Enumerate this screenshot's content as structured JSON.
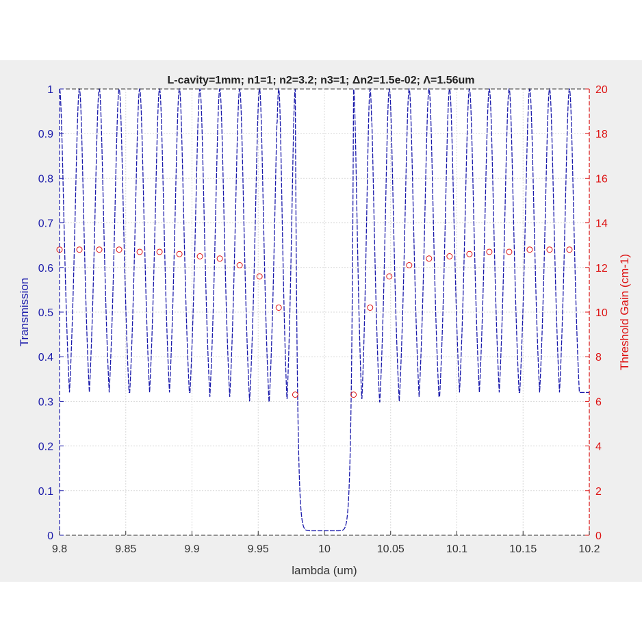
{
  "chart_data": {
    "type": "line",
    "title": "L-cavity=1mm; n1=1; n2=3.2; n3=1; Δn2=1.5e-02; Λ=1.56um",
    "xlabel": "lambda (um)",
    "ylabel": "Transmission",
    "y2label": "Threshold Gain (cm-1)",
    "xlim": [
      9.8,
      10.2
    ],
    "ylim": [
      0,
      1
    ],
    "y2lim": [
      0,
      20
    ],
    "xticks": [
      "9.8",
      "9.85",
      "9.9",
      "9.95",
      "10",
      "10.05",
      "10.1",
      "10.15",
      "10.2"
    ],
    "yticks": [
      "0",
      "0.1",
      "0.2",
      "0.3",
      "0.4",
      "0.5",
      "0.6",
      "0.7",
      "0.8",
      "0.9",
      "1"
    ],
    "y2ticks": [
      "0",
      "2",
      "4",
      "6",
      "8",
      "10",
      "12",
      "14",
      "16",
      "18",
      "20"
    ],
    "grid": true,
    "colors": {
      "left_axis": "#1a1aaa",
      "right_axis": "#dd1111",
      "transmission": "#1a1aaa",
      "threshold": "#dd1111"
    },
    "series": [
      {
        "role": "transmission",
        "style": "solid/dashed line",
        "peaks_x": [
          9.8,
          9.815,
          9.83,
          9.845,
          9.8605,
          9.8755,
          9.8905,
          9.906,
          9.921,
          9.936,
          9.951,
          9.9655,
          9.978,
          10.022,
          10.0345,
          10.049,
          10.064,
          10.079,
          10.0945,
          10.1095,
          10.1245,
          10.1395,
          10.155,
          10.17,
          10.185
        ],
        "peak_y": 1.0,
        "troughs_x": [
          9.8075,
          9.8225,
          9.8375,
          9.853,
          9.868,
          9.883,
          9.8985,
          9.9135,
          9.9285,
          9.9435,
          9.958,
          9.9705,
          10.0295,
          10.042,
          10.0565,
          10.0715,
          10.0865,
          10.102,
          10.117,
          10.132,
          10.147,
          10.1625,
          10.1775,
          10.1925
        ],
        "troughs_y": [
          0.32,
          0.32,
          0.32,
          0.32,
          0.32,
          0.32,
          0.32,
          0.31,
          0.31,
          0.3,
          0.28,
          0.23,
          0.23,
          0.28,
          0.3,
          0.31,
          0.31,
          0.32,
          0.32,
          0.32,
          0.32,
          0.32,
          0.32,
          0.32
        ],
        "stopband": {
          "x": [
            9.978,
            10.022
          ],
          "min_y": 0.01
        }
      },
      {
        "role": "threshold",
        "style": "open circles",
        "axis": "right",
        "x": [
          9.8,
          9.815,
          9.83,
          9.845,
          9.8605,
          9.8755,
          9.8905,
          9.906,
          9.921,
          9.936,
          9.951,
          9.9655,
          9.978,
          10.022,
          10.0345,
          10.049,
          10.064,
          10.079,
          10.0945,
          10.1095,
          10.1245,
          10.1395,
          10.155,
          10.17,
          10.185
        ],
        "values": [
          12.8,
          12.8,
          12.8,
          12.8,
          12.7,
          12.7,
          12.6,
          12.5,
          12.4,
          12.1,
          11.6,
          10.2,
          6.3,
          6.3,
          10.2,
          11.6,
          12.1,
          12.4,
          12.5,
          12.6,
          12.7,
          12.7,
          12.8,
          12.8,
          12.8
        ]
      }
    ]
  }
}
